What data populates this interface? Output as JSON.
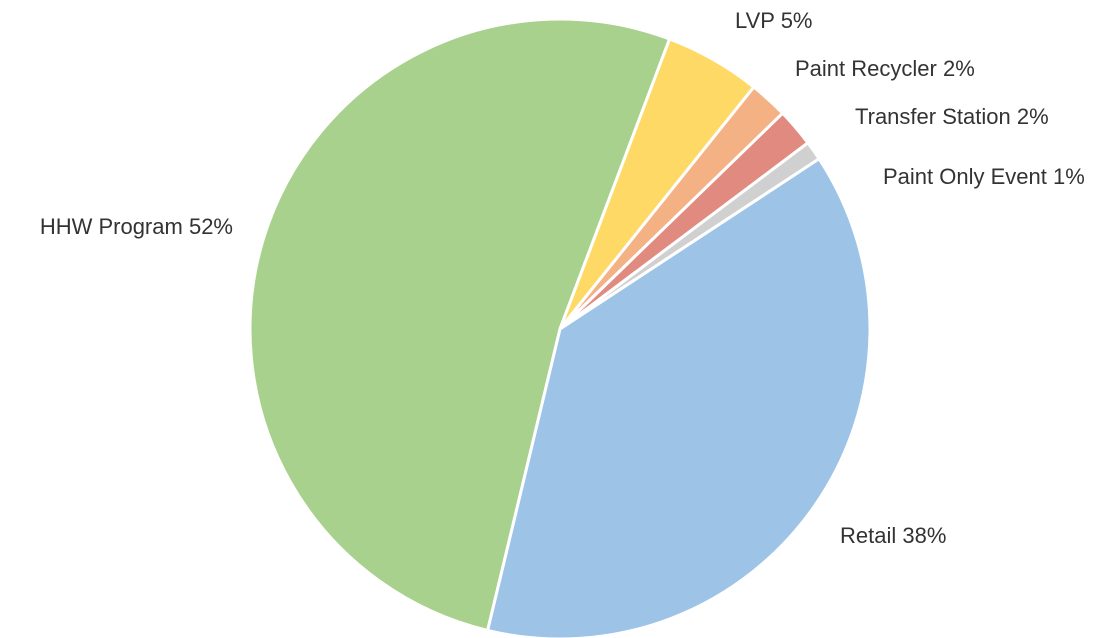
{
  "chart_data": {
    "type": "pie",
    "categories": [
      "HHW Program",
      "LVP",
      "Paint Recycler",
      "Transfer Station",
      "Paint Only Event",
      "Retail"
    ],
    "values": [
      52,
      5,
      2,
      2,
      1,
      38
    ],
    "value_labels": [
      "52%",
      "5%",
      "2%",
      "2%",
      "1%",
      "38%"
    ],
    "colors": [
      "#a9d18e",
      "#ffd966",
      "#f4b183",
      "#e08a80",
      "#d0d0d0",
      "#9dc3e6"
    ]
  }
}
